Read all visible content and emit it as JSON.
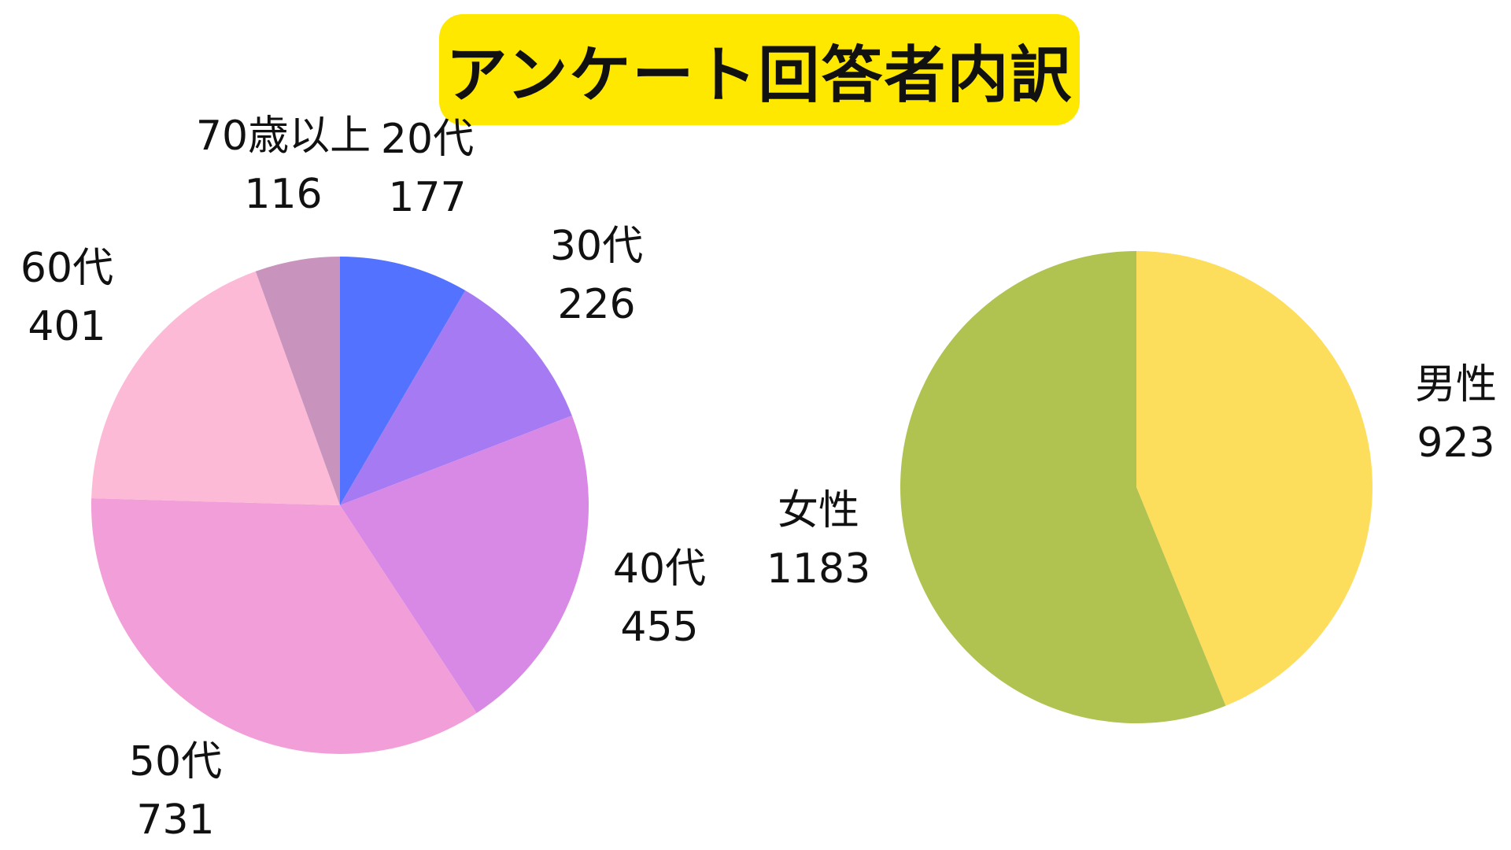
{
  "title": "アンケート回答者内訳",
  "colors": {
    "title_bg": "#ffe800"
  },
  "chart_data": [
    {
      "type": "pie",
      "title": "",
      "start_angle_deg": 0,
      "direction": "clockwise",
      "slices": [
        {
          "label": "20代",
          "value": 177,
          "color": "#5272ff"
        },
        {
          "label": "30代",
          "value": 226,
          "color": "#a67af2"
        },
        {
          "label": "40代",
          "value": 455,
          "color": "#d888e5"
        },
        {
          "label": "50代",
          "value": 731,
          "color": "#f29ed8"
        },
        {
          "label": "60代",
          "value": 401,
          "color": "#fdbad7"
        },
        {
          "label": "70歳以上",
          "value": 116,
          "color": "#c893bd"
        }
      ]
    },
    {
      "type": "pie",
      "title": "",
      "start_angle_deg": 0,
      "direction": "clockwise",
      "slices": [
        {
          "label": "男性",
          "value": 923,
          "color": "#fddd5c"
        },
        {
          "label": "女性",
          "value": 1183,
          "color": "#b0c250"
        }
      ]
    }
  ]
}
